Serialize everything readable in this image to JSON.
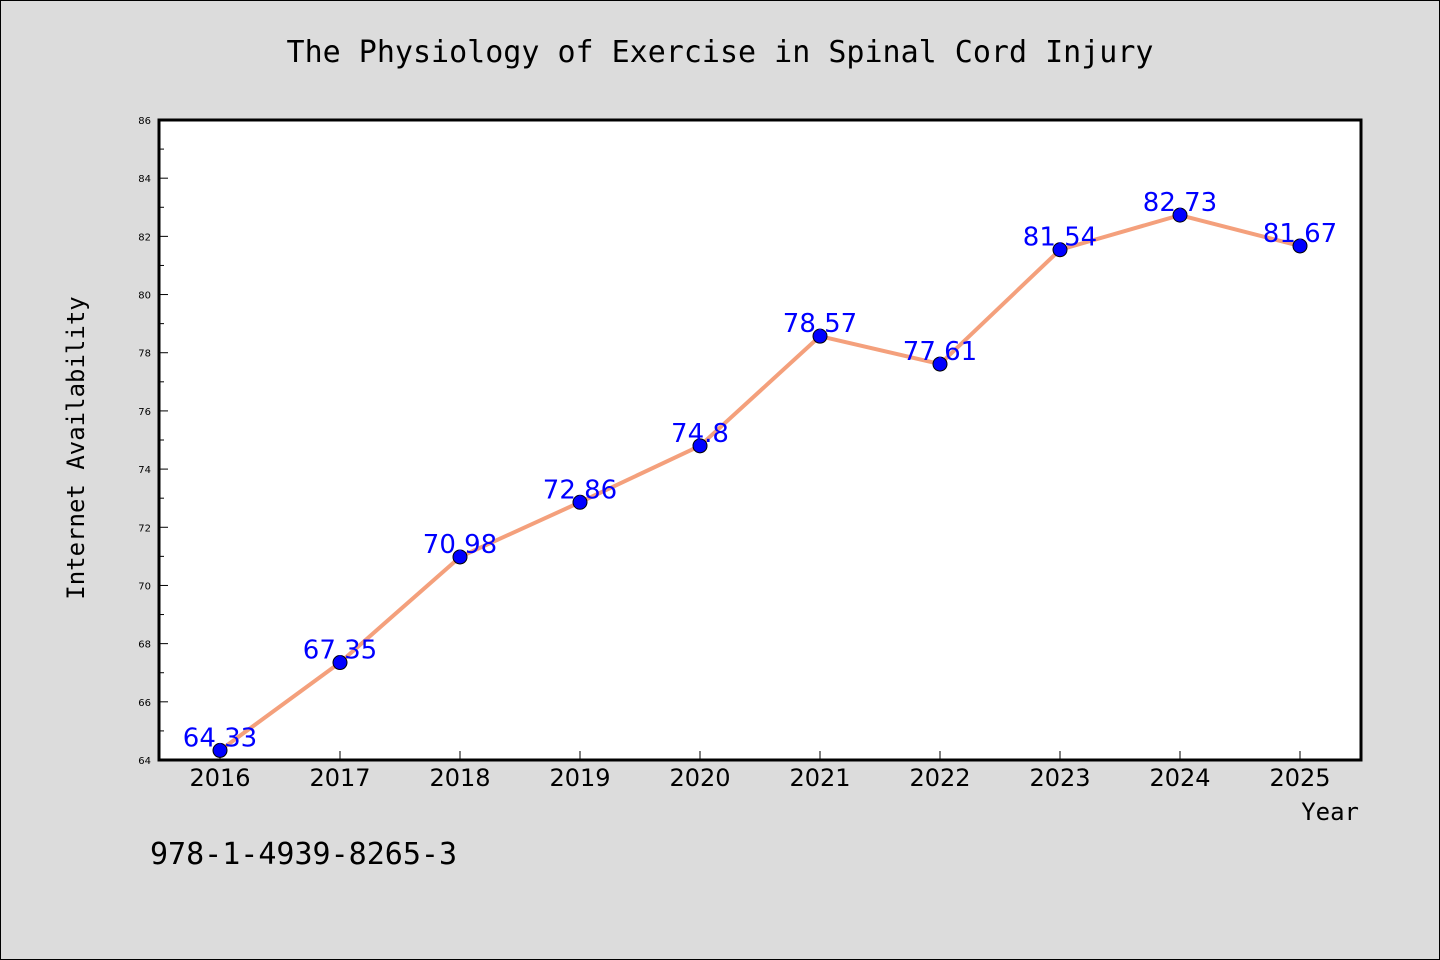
{
  "chart_data": {
    "type": "line",
    "title": "The Physiology of Exercise in Spinal Cord Injury",
    "xlabel": "Year",
    "ylabel": "Internet Availability",
    "categories": [
      "2016",
      "2017",
      "2018",
      "2019",
      "2020",
      "2021",
      "2022",
      "2023",
      "2024",
      "2025"
    ],
    "values": [
      64.33,
      67.35,
      70.98,
      72.86,
      74.8,
      78.57,
      77.61,
      81.54,
      82.73,
      81.67
    ],
    "data_labels": [
      "64.33",
      "67.35",
      "70.98",
      "72.86",
      "74.8",
      "78.57",
      "77.61",
      "81.54",
      "82.73",
      "81.67"
    ],
    "ylim": [
      64,
      86
    ],
    "yticks": [
      "64",
      "66",
      "68",
      "70",
      "72",
      "74",
      "76",
      "78",
      "80",
      "82",
      "84",
      "86"
    ],
    "grid": false,
    "legend": "none",
    "colors": {
      "line": "#f4a07c",
      "marker": "#0000ff",
      "label": "#0000ff"
    }
  },
  "footer_note": "978-1-4939-8265-3"
}
